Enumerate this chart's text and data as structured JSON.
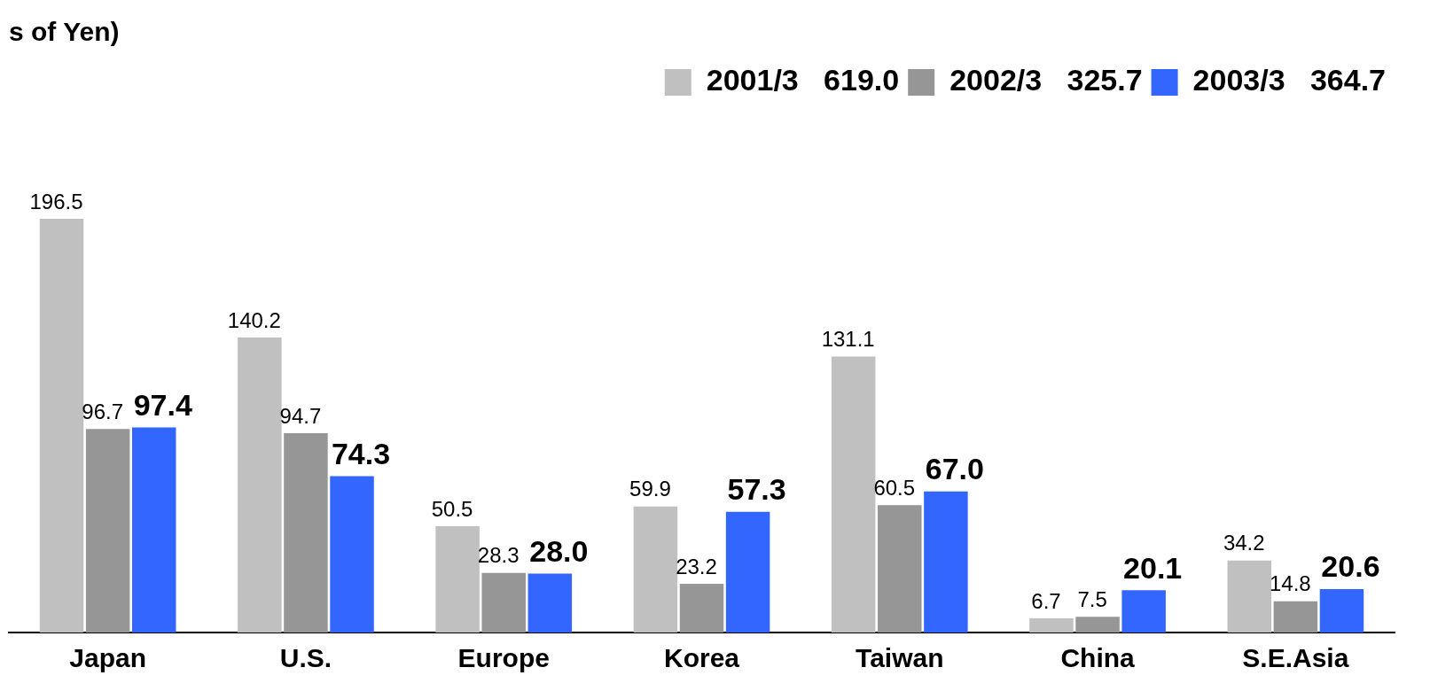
{
  "chart_data": {
    "type": "bar",
    "title": "s of Yen)",
    "categories": [
      "Japan",
      "U.S.",
      "Europe",
      "Korea",
      "Taiwan",
      "China",
      "S.E.Asia"
    ],
    "series": [
      {
        "name": "2001/3   619.0",
        "color": "#c0c0c0",
        "values": [
          196.5,
          140.2,
          50.5,
          59.9,
          131.1,
          6.7,
          34.2
        ],
        "value_labels": [
          "196.5",
          "140.2",
          "50.5",
          "59.9",
          "131.1",
          "6.7",
          "34.2"
        ]
      },
      {
        "name": "2002/3   325.7",
        "color": "#969696",
        "values": [
          96.7,
          94.7,
          28.3,
          23.2,
          60.5,
          7.5,
          14.8
        ],
        "value_labels": [
          "96.7",
          "94.7",
          "28.3",
          "23.2",
          "60.5",
          "7.5",
          "14.8"
        ]
      },
      {
        "name": "2003/3   364.7",
        "color": "#3366ff",
        "values": [
          97.4,
          74.3,
          28.0,
          57.3,
          67.0,
          20.1,
          20.6
        ],
        "value_labels": [
          "97.4",
          "74.3",
          "28.0",
          "57.3",
          "67.0",
          "20.1",
          "20.6"
        ]
      }
    ],
    "grid": false,
    "legend": "top right"
  }
}
